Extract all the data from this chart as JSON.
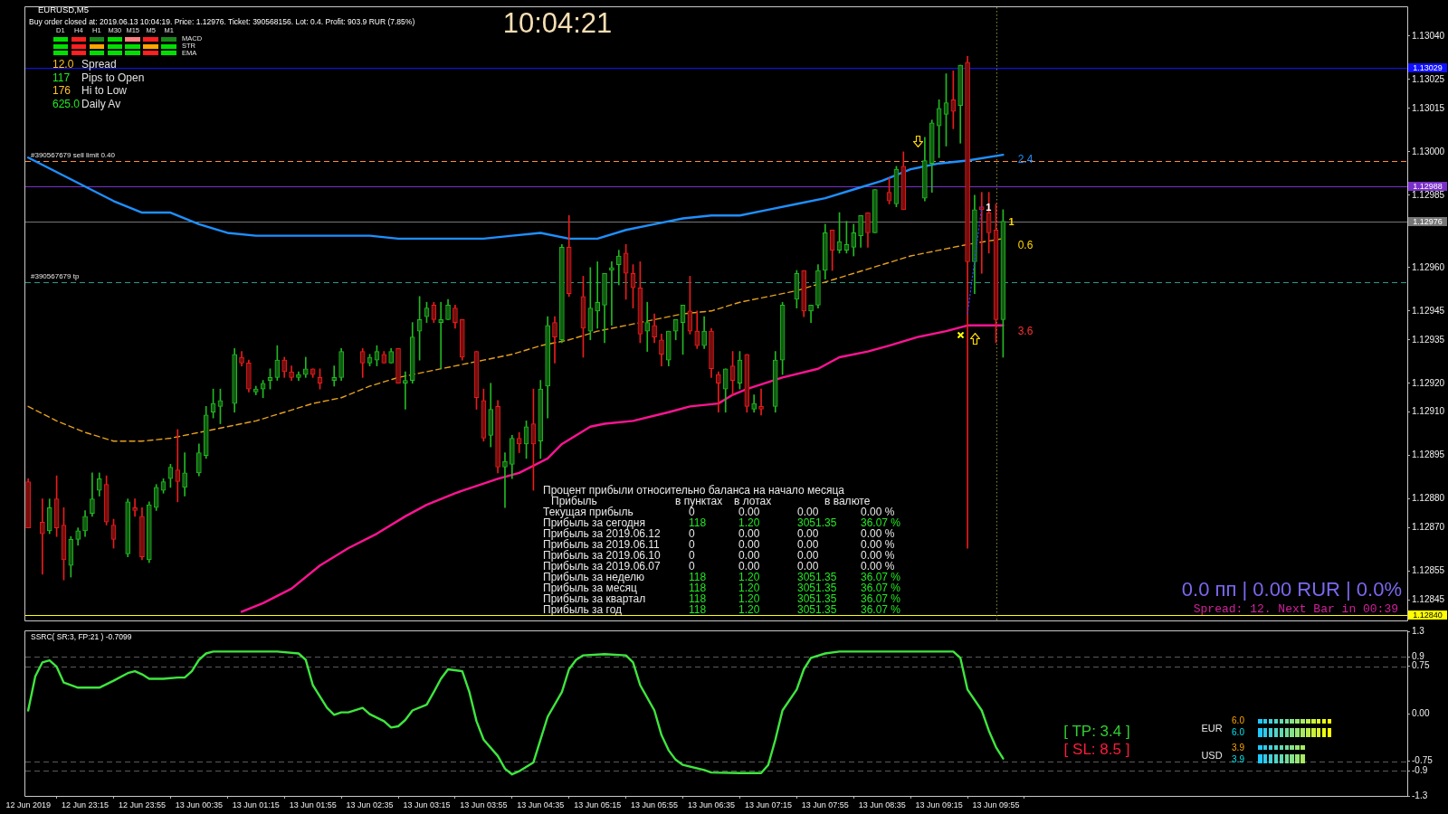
{
  "chart_data": [
    {
      "type": "candlestick",
      "title": "EURUSD,M5",
      "subtitle": "Buy order closed at: 2019.06.13 10:04:19. Price: 1.12976. Ticket: 390568156. Lot: 0.4. Profit: 903.9 RUR (7.85%)",
      "x": [
        "2019-06-12T22:35",
        "2019-06-12T22:45",
        "2019-06-12T22:50",
        "2019-06-12T22:55",
        "2019-06-12T23:00",
        "2019-06-12T23:05",
        "2019-06-12T23:10",
        "2019-06-12T23:15",
        "2019-06-12T23:20",
        "2019-06-12T23:25",
        "2019-06-12T23:30",
        "2019-06-12T23:35",
        "2019-06-12T23:45",
        "2019-06-12T23:50",
        "2019-06-12T23:55",
        "2019-06-13T00:00",
        "2019-06-13T00:05",
        "2019-06-13T00:10",
        "2019-06-13T00:15",
        "2019-06-13T00:20",
        "2019-06-13T00:25",
        "2019-06-13T00:35",
        "2019-06-13T00:40",
        "2019-06-13T00:45",
        "2019-06-13T00:50",
        "2019-06-13T01:00",
        "2019-06-13T01:05",
        "2019-06-13T01:10",
        "2019-06-13T01:15",
        "2019-06-13T01:20",
        "2019-06-13T01:25",
        "2019-06-13T01:30",
        "2019-06-13T01:35",
        "2019-06-13T01:40",
        "2019-06-13T01:45",
        "2019-06-13T01:50",
        "2019-06-13T01:55",
        "2019-06-13T02:00",
        "2019-06-13T02:10",
        "2019-06-13T02:15",
        "2019-06-13T02:30",
        "2019-06-13T02:35",
        "2019-06-13T02:40",
        "2019-06-13T02:45",
        "2019-06-13T02:50",
        "2019-06-13T02:55",
        "2019-06-13T03:00",
        "2019-06-13T03:05",
        "2019-06-13T03:10",
        "2019-06-13T03:15",
        "2019-06-13T03:20",
        "2019-06-13T03:25",
        "2019-06-13T03:30",
        "2019-06-13T03:35",
        "2019-06-13T03:40",
        "2019-06-13T03:50",
        "2019-06-13T03:55",
        "2019-06-13T04:00",
        "2019-06-13T04:05",
        "2019-06-13T04:10",
        "2019-06-13T04:15",
        "2019-06-13T04:20",
        "2019-06-13T04:25",
        "2019-06-13T04:30",
        "2019-06-13T04:35",
        "2019-06-13T04:40",
        "2019-06-13T04:45",
        "2019-06-13T04:50",
        "2019-06-13T04:55",
        "2019-06-13T05:05",
        "2019-06-13T05:10",
        "2019-06-13T05:15",
        "2019-06-13T05:20",
        "2019-06-13T05:25",
        "2019-06-13T05:30",
        "2019-06-13T05:35",
        "2019-06-13T05:40",
        "2019-06-13T05:45",
        "2019-06-13T05:50",
        "2019-06-13T05:55",
        "2019-06-13T06:00",
        "2019-06-13T06:05",
        "2019-06-13T06:10",
        "2019-06-13T06:15",
        "2019-06-13T06:20",
        "2019-06-13T06:25",
        "2019-06-13T06:30",
        "2019-06-13T06:35",
        "2019-06-13T06:40",
        "2019-06-13T06:45",
        "2019-06-13T06:50",
        "2019-06-13T06:55",
        "2019-06-13T07:00",
        "2019-06-13T07:05",
        "2019-06-13T07:10",
        "2019-06-13T07:20",
        "2019-06-13T07:25",
        "2019-06-13T07:35",
        "2019-06-13T07:40",
        "2019-06-13T07:45",
        "2019-06-13T07:50",
        "2019-06-13T07:55",
        "2019-06-13T08:00",
        "2019-06-13T08:05",
        "2019-06-13T08:10",
        "2019-06-13T08:15",
        "2019-06-13T08:20",
        "2019-06-13T08:25",
        "2019-06-13T08:30",
        "2019-06-13T08:40",
        "2019-06-13T08:45",
        "2019-06-13T08:50",
        "2019-06-13T09:05",
        "2019-06-13T09:10",
        "2019-06-13T09:15",
        "2019-06-13T09:20",
        "2019-06-13T09:25",
        "2019-06-13T09:30",
        "2019-06-13T09:35",
        "2019-06-13T09:40",
        "2019-06-13T09:45",
        "2019-06-13T09:50",
        "2019-06-13T09:55",
        "2019-06-13T10:00"
      ],
      "ohlc": [
        [
          1.12886,
          1.12887,
          1.1287,
          1.1287
        ],
        [
          1.12872,
          1.1288,
          1.12854,
          1.12868
        ],
        [
          1.12869,
          1.1288,
          1.12868,
          1.12877
        ],
        [
          1.1288,
          1.12888,
          1.12867,
          1.1287
        ],
        [
          1.12871,
          1.12877,
          1.12852,
          1.12859
        ],
        [
          1.12857,
          1.12867,
          1.12853,
          1.12866
        ],
        [
          1.12866,
          1.1287,
          1.12864,
          1.12869
        ],
        [
          1.12869,
          1.12876,
          1.12867,
          1.12874
        ],
        [
          1.12875,
          1.12889,
          1.12874,
          1.1288
        ],
        [
          1.12883,
          1.12889,
          1.12881,
          1.12887
        ],
        [
          1.12885,
          1.12888,
          1.12871,
          1.12872
        ],
        [
          1.12871,
          1.12873,
          1.12863,
          1.12866
        ],
        [
          1.12861,
          1.1288,
          1.1286,
          1.12879
        ],
        [
          1.12877,
          1.1288,
          1.12874,
          1.12876
        ],
        [
          1.12874,
          1.12877,
          1.12859,
          1.1286
        ],
        [
          1.12859,
          1.12879,
          1.12858,
          1.12878
        ],
        [
          1.12877,
          1.12885,
          1.12876,
          1.12884
        ],
        [
          1.12883,
          1.12887,
          1.12882,
          1.12886
        ],
        [
          1.12887,
          1.12892,
          1.12884,
          1.12891
        ],
        [
          1.1289,
          1.12904,
          1.12879,
          1.12886
        ],
        [
          1.12884,
          1.12896,
          1.12881,
          1.12889
        ],
        [
          1.12889,
          1.12899,
          1.12888,
          1.12896
        ],
        [
          1.12895,
          1.12912,
          1.12894,
          1.12909
        ],
        [
          1.1291,
          1.12918,
          1.12908,
          1.12913
        ],
        [
          1.12912,
          1.12918,
          1.12906,
          1.12914
        ],
        [
          1.12913,
          1.12932,
          1.1291,
          1.1293
        ],
        [
          1.12929,
          1.12931,
          1.12926,
          1.12927
        ],
        [
          1.12927,
          1.12928,
          1.12917,
          1.12918
        ],
        [
          1.12917,
          1.12919,
          1.12916,
          1.12918
        ],
        [
          1.12918,
          1.12921,
          1.12915,
          1.1292
        ],
        [
          1.12921,
          1.12925,
          1.12918,
          1.12922
        ],
        [
          1.12922,
          1.12933,
          1.12921,
          1.12928
        ],
        [
          1.12928,
          1.12929,
          1.12922,
          1.12924
        ],
        [
          1.12924,
          1.12926,
          1.12921,
          1.12922
        ],
        [
          1.12922,
          1.12924,
          1.12921,
          1.12923
        ],
        [
          1.12923,
          1.12929,
          1.12922,
          1.12925
        ],
        [
          1.12925,
          1.12925,
          1.12922,
          1.12923
        ],
        [
          1.12922,
          1.12925,
          1.12918,
          1.1292
        ],
        [
          1.12921,
          1.12926,
          1.12919,
          1.12922
        ],
        [
          1.12922,
          1.12932,
          1.12921,
          1.12931
        ],
        [
          1.12931,
          1.12932,
          1.12922,
          1.12927
        ],
        [
          1.12927,
          1.1293,
          1.12926,
          1.12929
        ],
        [
          1.12928,
          1.12933,
          1.12926,
          1.12931
        ],
        [
          1.1293,
          1.12931,
          1.12927,
          1.12927
        ],
        [
          1.12927,
          1.12932,
          1.12927,
          1.12931
        ],
        [
          1.12932,
          1.12932,
          1.1292,
          1.1292
        ],
        [
          1.1292,
          1.12924,
          1.12911,
          1.12921
        ],
        [
          1.12921,
          1.12941,
          1.1292,
          1.12936
        ],
        [
          1.12938,
          1.1295,
          1.12928,
          1.12942
        ],
        [
          1.12943,
          1.12948,
          1.12941,
          1.12946
        ],
        [
          1.12947,
          1.12948,
          1.12941,
          1.12942
        ],
        [
          1.12941,
          1.12948,
          1.12925,
          1.12942
        ],
        [
          1.12942,
          1.12949,
          1.12942,
          1.12947
        ],
        [
          1.12946,
          1.12947,
          1.12939,
          1.12941
        ],
        [
          1.12942,
          1.12942,
          1.12928,
          1.12929
        ],
        [
          1.12931,
          1.12931,
          1.12911,
          1.12915
        ],
        [
          1.12914,
          1.12918,
          1.129,
          1.12901
        ],
        [
          1.12902,
          1.1292,
          1.12898,
          1.12911
        ],
        [
          1.12912,
          1.12914,
          1.12889,
          1.12891
        ],
        [
          1.12891,
          1.12896,
          1.12877,
          1.12893
        ],
        [
          1.12892,
          1.12902,
          1.12887,
          1.12901
        ],
        [
          1.12901,
          1.12903,
          1.12896,
          1.12899
        ],
        [
          1.12899,
          1.12907,
          1.12894,
          1.12905
        ],
        [
          1.12906,
          1.12918,
          1.12883,
          1.12899
        ],
        [
          1.129,
          1.12921,
          1.12894,
          1.12918
        ],
        [
          1.12919,
          1.12943,
          1.12908,
          1.1294
        ],
        [
          1.12941,
          1.12943,
          1.12927,
          1.12936
        ],
        [
          1.12935,
          1.12968,
          1.12934,
          1.12967
        ],
        [
          1.12967,
          1.12978,
          1.1295,
          1.12951
        ],
        [
          1.1295,
          1.12957,
          1.12929,
          1.12939
        ],
        [
          1.12938,
          1.1296,
          1.12935,
          1.12946
        ],
        [
          1.12945,
          1.12962,
          1.12939,
          1.12948
        ],
        [
          1.12947,
          1.12958,
          1.12934,
          1.12958
        ],
        [
          1.12959,
          1.12962,
          1.1294,
          1.1296
        ],
        [
          1.12961,
          1.12966,
          1.12954,
          1.12964
        ],
        [
          1.12965,
          1.12968,
          1.12949,
          1.12958
        ],
        [
          1.12958,
          1.12961,
          1.12946,
          1.12953
        ],
        [
          1.12953,
          1.12962,
          1.12934,
          1.12937
        ],
        [
          1.12938,
          1.12948,
          1.12931,
          1.12941
        ],
        [
          1.1294,
          1.12944,
          1.12934,
          1.12936
        ],
        [
          1.12935,
          1.12937,
          1.12926,
          1.1293
        ],
        [
          1.12928,
          1.12938,
          1.12926,
          1.12938
        ],
        [
          1.12938,
          1.12942,
          1.12935,
          1.12942
        ],
        [
          1.12941,
          1.12947,
          1.1293,
          1.12947
        ],
        [
          1.12945,
          1.12957,
          1.12937,
          1.12938
        ],
        [
          1.12938,
          1.12945,
          1.12932,
          1.12933
        ],
        [
          1.12933,
          1.12943,
          1.12932,
          1.12938
        ],
        [
          1.12938,
          1.12939,
          1.12922,
          1.12925
        ],
        [
          1.12923,
          1.12924,
          1.1291,
          1.1292
        ],
        [
          1.12918,
          1.12925,
          1.1291,
          1.12925
        ],
        [
          1.12926,
          1.12931,
          1.12916,
          1.12921
        ],
        [
          1.1292,
          1.12931,
          1.12918,
          1.12928
        ],
        [
          1.1293,
          1.1293,
          1.1291,
          1.12912
        ],
        [
          1.12911,
          1.12916,
          1.1291,
          1.12913
        ],
        [
          1.12912,
          1.12918,
          1.12909,
          1.12911
        ],
        [
          1.12912,
          1.12931,
          1.1291,
          1.12928
        ],
        [
          1.12928,
          1.12948,
          1.12923,
          1.12947
        ],
        [
          1.12949,
          1.12959,
          1.12946,
          1.12958
        ],
        [
          1.12959,
          1.12959,
          1.12943,
          1.12945
        ],
        [
          1.12945,
          1.12947,
          1.12941,
          1.12947
        ],
        [
          1.12947,
          1.12961,
          1.12946,
          1.12959
        ],
        [
          1.12959,
          1.12975,
          1.12956,
          1.12972
        ],
        [
          1.12973,
          1.12973,
          1.12959,
          1.12966
        ],
        [
          1.12966,
          1.12979,
          1.12965,
          1.12969
        ],
        [
          1.12966,
          1.12976,
          1.12965,
          1.12968
        ],
        [
          1.12967,
          1.12975,
          1.12964,
          1.12972
        ],
        [
          1.12971,
          1.12978,
          1.12967,
          1.12978
        ],
        [
          1.12979,
          1.12979,
          1.12967,
          1.12972
        ],
        [
          1.12972,
          1.12987,
          1.12972,
          1.12987
        ],
        [
          1.12986,
          1.12991,
          1.12982,
          1.12983
        ],
        [
          1.12982,
          1.12995,
          1.12981,
          1.12994
        ],
        [
          1.12995,
          1.13,
          1.1298,
          1.1298
        ],
        [
          1.12984,
          1.13005,
          1.12983,
          1.12997
        ],
        [
          1.12996,
          1.13011,
          1.12986,
          1.1301
        ],
        [
          1.13009,
          1.13018,
          1.12998,
          1.13015
        ],
        [
          1.13013,
          1.13027,
          1.13002,
          1.13017
        ],
        [
          1.13018,
          1.13028,
          1.13008,
          1.13014
        ],
        [
          1.13016,
          1.1303,
          1.13003,
          1.1303
        ],
        [
          1.13031,
          1.13033,
          1.12863,
          1.12962
        ],
        [
          1.12962,
          1.12985,
          1.12951,
          1.1298
        ],
        [
          1.12981,
          1.12986,
          1.12958,
          1.1298
        ],
        [
          1.12979,
          1.12986,
          1.12965,
          1.12972
        ],
        [
          1.12973,
          1.12982,
          1.12934,
          1.12942
        ],
        [
          1.12942,
          1.1298,
          1.12929,
          1.12976
        ]
      ],
      "colors": [
        "#e81c1c",
        "#e81c1c",
        "#22b822",
        "#e81c1c",
        "#e81c1c",
        "#22b822",
        "#22b822",
        "#22b822",
        "#22b822",
        "#22b822",
        "#e81c1c",
        "#e81c1c",
        "#22b822",
        "#e81c1c",
        "#e81c1c",
        "#22b822",
        "#22b822",
        "#22b822",
        "#22b822",
        "#e81c1c",
        "#22b822",
        "#22b822",
        "#22b822",
        "#22b822",
        "#22b822",
        "#22b822",
        "#e81c1c",
        "#e81c1c",
        "#22b822",
        "#22b822",
        "#22b822",
        "#22b822",
        "#e81c1c",
        "#e81c1c",
        "#22b822",
        "#22b822",
        "#e81c1c",
        "#e81c1c",
        "#22b822",
        "#22b822",
        "#e81c1c",
        "#22b822",
        "#22b822",
        "#e81c1c",
        "#22b822",
        "#e81c1c",
        "#22b822",
        "#22b822",
        "#22b822",
        "#22b822",
        "#e81c1c",
        "#22b822",
        "#22b822",
        "#e81c1c",
        "#e81c1c",
        "#e81c1c",
        "#e81c1c",
        "#22b822",
        "#e81c1c",
        "#22b822",
        "#22b822",
        "#e81c1c",
        "#22b822",
        "#e81c1c",
        "#22b822",
        "#22b822",
        "#e81c1c",
        "#22b822",
        "#e81c1c",
        "#e81c1c",
        "#22b822",
        "#22b822",
        "#22b822",
        "#22b822",
        "#22b822",
        "#e81c1c",
        "#e81c1c",
        "#e81c1c",
        "#22b822",
        "#e81c1c",
        "#e81c1c",
        "#22b822",
        "#22b822",
        "#22b822",
        "#e81c1c",
        "#e81c1c",
        "#22b822",
        "#e81c1c",
        "#e81c1c",
        "#22b822",
        "#e81c1c",
        "#22b822",
        "#e81c1c",
        "#22b822",
        "#e81c1c",
        "#22b822",
        "#22b822",
        "#22b822",
        "#e81c1c",
        "#22b822",
        "#22b822",
        "#22b822",
        "#e81c1c",
        "#22b822",
        "#22b822",
        "#22b822",
        "#22b822",
        "#e81c1c",
        "#22b822",
        "#e81c1c",
        "#22b822",
        "#e81c1c",
        "#22b822",
        "#22b822",
        "#22b822",
        "#22b822",
        "#e81c1c",
        "#22b822",
        "#e81c1c",
        "#22b822",
        "#e81c1c",
        "#e81c1c",
        "#e81c1c",
        "#22b822"
      ],
      "series": [
        {
          "type": "line",
          "color": "#1e90ff",
          "x": [
            "2019-06-12T22:35",
            "2019-06-12T22:55",
            "2019-06-12T23:15",
            "2019-06-12T23:35",
            "2019-06-12T23:55",
            "2019-06-13T00:15",
            "2019-06-13T00:35",
            "2019-06-13T00:55",
            "2019-06-13T01:15",
            "2019-06-13T01:35",
            "2019-06-13T01:55",
            "2019-06-13T02:15",
            "2019-06-13T02:35",
            "2019-06-13T02:55",
            "2019-06-13T03:15",
            "2019-06-13T03:35",
            "2019-06-13T03:55",
            "2019-06-13T04:15",
            "2019-06-13T04:35",
            "2019-06-13T04:55",
            "2019-06-13T05:15",
            "2019-06-13T05:35",
            "2019-06-13T05:55",
            "2019-06-13T06:15",
            "2019-06-13T06:35",
            "2019-06-13T06:55",
            "2019-06-13T07:15",
            "2019-06-13T07:35",
            "2019-06-13T07:55",
            "2019-06-13T08:15",
            "2019-06-13T08:35",
            "2019-06-13T08:55",
            "2019-06-13T09:15",
            "2019-06-13T09:35",
            "2019-06-13T10:00"
          ],
          "values": [
            1.12998,
            1.12993,
            1.12988,
            1.12983,
            1.12979,
            1.12979,
            1.12975,
            1.12972,
            1.12971,
            1.12971,
            1.12971,
            1.12971,
            1.12971,
            1.1297,
            1.1297,
            1.1297,
            1.1297,
            1.12971,
            1.12972,
            1.1297,
            1.1297,
            1.12973,
            1.12975,
            1.12977,
            1.12978,
            1.12978,
            1.1298,
            1.12982,
            1.12984,
            1.12987,
            1.1299,
            1.12994,
            1.12996,
            1.12997,
            1.12999
          ]
        },
        {
          "type": "line",
          "color": "#e6a020",
          "line_style": "dashed",
          "x": [
            "2019-06-12T22:35",
            "2019-06-12T22:55",
            "2019-06-12T23:15",
            "2019-06-12T23:35",
            "2019-06-12T23:55",
            "2019-06-13T00:15",
            "2019-06-13T00:35",
            "2019-06-13T00:55",
            "2019-06-13T01:15",
            "2019-06-13T01:35",
            "2019-06-13T01:55",
            "2019-06-13T02:15",
            "2019-06-13T02:35",
            "2019-06-13T02:55",
            "2019-06-13T03:15",
            "2019-06-13T03:35",
            "2019-06-13T03:55",
            "2019-06-13T04:15",
            "2019-06-13T04:35",
            "2019-06-13T04:55",
            "2019-06-13T05:15",
            "2019-06-13T05:35",
            "2019-06-13T05:55",
            "2019-06-13T06:15",
            "2019-06-13T06:35",
            "2019-06-13T06:55",
            "2019-06-13T07:15",
            "2019-06-13T07:35",
            "2019-06-13T07:55",
            "2019-06-13T08:15",
            "2019-06-13T08:35",
            "2019-06-13T08:55",
            "2019-06-13T09:15",
            "2019-06-13T09:35",
            "2019-06-13T10:00"
          ],
          "values": [
            1.12912,
            1.12907,
            1.12903,
            1.129,
            1.129,
            1.12901,
            1.12903,
            1.12905,
            1.12907,
            1.1291,
            1.12913,
            1.12915,
            1.12919,
            1.12922,
            1.12924,
            1.12926,
            1.12928,
            1.1293,
            1.12933,
            1.12935,
            1.12938,
            1.1294,
            1.12942,
            1.12944,
            1.12945,
            1.12948,
            1.1295,
            1.12952,
            1.12955,
            1.12958,
            1.12961,
            1.12964,
            1.12966,
            1.12968,
            1.1297
          ]
        },
        {
          "type": "line",
          "color": "#ff1493",
          "x": [
            "2019-06-13T01:05",
            "2019-06-13T01:20",
            "2019-06-13T01:40",
            "2019-06-13T02:00",
            "2019-06-13T02:20",
            "2019-06-13T02:40",
            "2019-06-13T03:00",
            "2019-06-13T03:15",
            "2019-06-13T03:35",
            "2019-06-13T04:05",
            "2019-06-13T04:20",
            "2019-06-13T04:40",
            "2019-06-13T04:50",
            "2019-06-13T05:10",
            "2019-06-13T05:20",
            "2019-06-13T05:40",
            "2019-06-13T06:05",
            "2019-06-13T06:20",
            "2019-06-13T06:40",
            "2019-06-13T06:50",
            "2019-06-13T07:00",
            "2019-06-13T07:25",
            "2019-06-13T07:50",
            "2019-06-13T08:05",
            "2019-06-13T08:25",
            "2019-06-13T08:40",
            "2019-06-13T09:00",
            "2019-06-13T09:20",
            "2019-06-13T09:35",
            "2019-06-13T10:00"
          ],
          "values": [
            1.12841,
            1.12844,
            1.12849,
            1.12857,
            1.12863,
            1.12868,
            1.12874,
            1.12878,
            1.12882,
            1.12887,
            1.12889,
            1.12894,
            1.12899,
            1.12905,
            1.12906,
            1.12907,
            1.1291,
            1.12912,
            1.12913,
            1.12916,
            1.12918,
            1.12922,
            1.12925,
            1.12929,
            1.12931,
            1.12933,
            1.12936,
            1.12938,
            1.1294,
            1.1294
          ]
        },
        {
          "type": "line",
          "color": "#3040ff",
          "line_style": "dotted",
          "x": [
            "2019-06-13T09:35",
            "2019-06-13T09:45"
          ],
          "values": [
            1.12944,
            1.12981
          ]
        }
      ],
      "xlim": [
        "2019-06-12T22:33",
        "2019-06-13T14:44"
      ],
      "ylim": [
        1.12838,
        1.1305
      ],
      "yticks": [
        {
          "value": 1.1304,
          "label": "1.13040"
        },
        1.13025,
        1.13015,
        {
          "value": 1.13,
          "label": "1.13000"
        },
        1.12985,
        {
          "value": 1.1296,
          "label": "1.12960"
        },
        1.12945,
        1.12935,
        {
          "value": 1.1292,
          "label": "1.12920"
        },
        {
          "value": 1.1291,
          "label": "1.12910"
        },
        1.12895,
        {
          "value": 1.1288,
          "label": "1.12880"
        },
        {
          "value": 1.1287,
          "label": "1.12870"
        },
        1.12855,
        1.12845
      ],
      "tick_labels": "y",
      "ref_lines": [
        {
          "axis": "y",
          "value": 1.13029,
          "label": "1.13029",
          "color": "#1010ff"
        },
        {
          "axis": "y",
          "value": 1.12997,
          "label": "#390567679 sell limit 0.40",
          "color": "#ff8c3a",
          "line_style": "dashed"
        },
        {
          "axis": "y",
          "value": 1.12988,
          "label": "1.12988",
          "color": "#7a2fc8"
        },
        {
          "axis": "y",
          "value": 1.12976,
          "label": "1.12976",
          "color": "#777777"
        },
        {
          "axis": "y",
          "value": 1.12955,
          "label": "#390567679 tp",
          "color": "#2a9a8a",
          "line_style": "dashed"
        },
        {
          "axis": "y",
          "value": 1.1284,
          "label": "1.12840",
          "color": "#ffff00"
        },
        {
          "axis": "x",
          "value": "2019-06-13T09:55",
          "color": "#8a8a40",
          "line_style": "dotted"
        }
      ],
      "annotations": [
        "10:04:21",
        "D1",
        "H4",
        "H1",
        "M30",
        "M15",
        "M5",
        "M1",
        "MACD",
        "STR",
        "EMA",
        "12.0",
        "Spread",
        "117",
        "Pips to Open",
        "176",
        "Hi to Low",
        "625.0",
        "Daily Av",
        "Процент прибыли относительно баланса на начало месяца",
        "Прибыль",
        "в пунктах",
        "в лотах",
        "в валюте",
        "Текущая прибыль",
        "0",
        "0.00",
        "0.00",
        "0.00 %",
        "Прибыль за сегодня",
        "118",
        "1.20",
        "3051.35",
        "36.07 %",
        "Прибыль за 2019.06.12",
        "0",
        "0.00",
        "0.00",
        "0.00 %",
        "Прибыль за 2019.06.11",
        "0",
        "0.00",
        "0.00",
        "0.00 %",
        "Прибыль за 2019.06.10",
        "0",
        "0.00",
        "0.00",
        "0.00 %",
        "Прибыль за 2019.06.07",
        "0",
        "0.00",
        "0.00",
        "0.00 %",
        "Прибыль за неделю",
        "118",
        "1.20",
        "3051.35",
        "36.07 %",
        "Прибыль за месяц",
        "118",
        "1.20",
        "3051.35",
        "36.07 %",
        "Прибыль за квартал",
        "118",
        "1.20",
        "3051.35",
        "36.07 %",
        "Прибыль за год",
        "118",
        "1.20",
        "3051.35",
        "36.07 %",
        "0.0 пп | 0.00 RUR | 0.0%",
        "Spread: 12. Next Bar in 00:39",
        "2.4",
        "0.6",
        "3.6",
        {
          "text": "1",
          "x": "2019-06-13T09:46",
          "y": 1.12981
        },
        {
          "text": "1",
          "x": "2019-06-13T10:02",
          "y": 1.12976
        }
      ]
    },
    {
      "type": "line",
      "title": "SSRC( SR:3, FP:21 ) -0.7099",
      "color": "#3ee63e",
      "x": [
        "2019-06-12T22:35",
        "2019-06-12T22:40",
        "2019-06-12T22:45",
        "2019-06-12T22:50",
        "2019-06-12T22:55",
        "2019-06-12T23:00",
        "2019-06-12T23:10",
        "2019-06-12T23:15",
        "2019-06-12T23:25",
        "2019-06-12T23:35",
        "2019-06-12T23:45",
        "2019-06-12T23:50",
        "2019-06-12T23:55",
        "2019-06-13T00:00",
        "2019-06-13T00:10",
        "2019-06-13T00:20",
        "2019-06-13T00:25",
        "2019-06-13T00:30",
        "2019-06-13T00:35",
        "2019-06-13T00:40",
        "2019-06-13T00:45",
        "2019-06-13T00:55",
        "2019-06-13T01:30",
        "2019-06-13T01:45",
        "2019-06-13T01:50",
        "2019-06-13T01:55",
        "2019-06-13T02:05",
        "2019-06-13T02:10",
        "2019-06-13T02:15",
        "2019-06-13T02:20",
        "2019-06-13T02:30",
        "2019-06-13T02:35",
        "2019-06-13T02:45",
        "2019-06-13T02:50",
        "2019-06-13T02:55",
        "2019-06-13T03:00",
        "2019-06-13T03:05",
        "2019-06-13T03:15",
        "2019-06-13T03:20",
        "2019-06-13T03:25",
        "2019-06-13T03:30",
        "2019-06-13T03:40",
        "2019-06-13T03:45",
        "2019-06-13T03:50",
        "2019-06-13T03:55",
        "2019-06-13T04:05",
        "2019-06-13T04:10",
        "2019-06-13T04:15",
        "2019-06-13T04:20",
        "2019-06-13T04:30",
        "2019-06-13T04:35",
        "2019-06-13T04:40",
        "2019-06-13T04:50",
        "2019-06-13T04:55",
        "2019-06-13T05:00",
        "2019-06-13T05:05",
        "2019-06-13T05:20",
        "2019-06-13T05:35",
        "2019-06-13T05:40",
        "2019-06-13T05:45",
        "2019-06-13T05:55",
        "2019-06-13T06:00",
        "2019-06-13T06:05",
        "2019-06-13T06:10",
        "2019-06-13T06:15",
        "2019-06-13T06:30",
        "2019-06-13T06:35",
        "2019-06-13T06:55",
        "2019-06-13T07:10",
        "2019-06-13T07:15",
        "2019-06-13T07:20",
        "2019-06-13T07:25",
        "2019-06-13T07:35",
        "2019-06-13T07:40",
        "2019-06-13T07:45",
        "2019-06-13T07:55",
        "2019-06-13T08:05",
        "2019-06-13T08:40",
        "2019-06-13T09:25",
        "2019-06-13T09:30",
        "2019-06-13T09:35",
        "2019-06-13T09:45",
        "2019-06-13T09:50",
        "2019-06-13T09:55",
        "2019-06-13T10:00"
      ],
      "values": [
        0.05,
        0.59,
        0.81,
        0.84,
        0.74,
        0.49,
        0.41,
        0.41,
        0.41,
        0.52,
        0.64,
        0.67,
        0.62,
        0.55,
        0.55,
        0.57,
        0.57,
        0.67,
        0.85,
        0.95,
        0.98,
        0.98,
        0.98,
        0.95,
        0.85,
        0.45,
        0.09,
        -0.02,
        0.02,
        0.02,
        0.09,
        -0.01,
        -0.12,
        -0.22,
        -0.2,
        -0.1,
        0.05,
        0.14,
        0.34,
        0.55,
        0.7,
        0.67,
        0.34,
        -0.12,
        -0.41,
        -0.67,
        -0.87,
        -0.96,
        -0.91,
        -0.77,
        -0.41,
        -0.05,
        0.34,
        0.7,
        0.85,
        0.92,
        0.94,
        0.92,
        0.81,
        0.45,
        0.05,
        -0.34,
        -0.58,
        -0.73,
        -0.81,
        -0.89,
        -0.93,
        -0.94,
        -0.94,
        -0.81,
        -0.41,
        0.05,
        0.38,
        0.7,
        0.88,
        0.95,
        0.98,
        0.98,
        0.98,
        0.88,
        0.38,
        0.05,
        -0.27,
        -0.53,
        -0.71
      ],
      "xlim": [
        "2019-06-12T22:33",
        "2019-06-13T14:44"
      ],
      "xticks": [
        {
          "value": "2019-06-12T22:35",
          "label": "12 Jun 2019"
        },
        {
          "value": "2019-06-12T23:15",
          "label": "12 Jun 23:15"
        },
        {
          "value": "2019-06-12T23:55",
          "label": "12 Jun 23:55"
        },
        {
          "value": "2019-06-13T00:35",
          "label": "13 Jun 00:35"
        },
        {
          "value": "2019-06-13T01:15",
          "label": "13 Jun 01:15"
        },
        {
          "value": "2019-06-13T01:55",
          "label": "13 Jun 01:55"
        },
        {
          "value": "2019-06-13T02:35",
          "label": "13 Jun 02:35"
        },
        {
          "value": "2019-06-13T03:15",
          "label": "13 Jun 03:15"
        },
        {
          "value": "2019-06-13T03:55",
          "label": "13 Jun 03:55"
        },
        {
          "value": "2019-06-13T04:35",
          "label": "13 Jun 04:35"
        },
        {
          "value": "2019-06-13T05:15",
          "label": "13 Jun 05:15"
        },
        {
          "value": "2019-06-13T05:55",
          "label": "13 Jun 05:55"
        },
        {
          "value": "2019-06-13T06:35",
          "label": "13 Jun 06:35"
        },
        {
          "value": "2019-06-13T07:15",
          "label": "13 Jun 07:15"
        },
        {
          "value": "2019-06-13T07:55",
          "label": "13 Jun 07:55"
        },
        {
          "value": "2019-06-13T08:35",
          "label": "13 Jun 08:35"
        },
        {
          "value": "2019-06-13T09:15",
          "label": "13 Jun 09:15"
        },
        {
          "value": "2019-06-13T09:55",
          "label": "13 Jun 09:55"
        }
      ],
      "ylim": [
        -1.3,
        1.3
      ],
      "yticks": [
        1.3,
        0.9,
        0.75,
        {
          "value": 0,
          "label": "0.00"
        },
        -0.75,
        -0.9,
        -1.3
      ],
      "ref_lines": [
        {
          "axis": "y",
          "value": 0.9,
          "color": "#5a5a5a",
          "line_style": "dashed"
        },
        {
          "axis": "y",
          "value": 0.75,
          "color": "#5a5a5a",
          "line_style": "dashed"
        },
        {
          "axis": "y",
          "value": -0.75,
          "color": "#5a5a5a",
          "line_style": "dashed"
        },
        {
          "axis": "y",
          "value": -0.9,
          "color": "#5a5a5a",
          "line_style": "dashed"
        }
      ],
      "annotations": [
        "[ TP: 3.4 ]",
        "[ SL: 8.5 ]",
        "EUR",
        "6.0",
        "6.0",
        "USD",
        "3.9",
        "3.9"
      ]
    }
  ]
}
